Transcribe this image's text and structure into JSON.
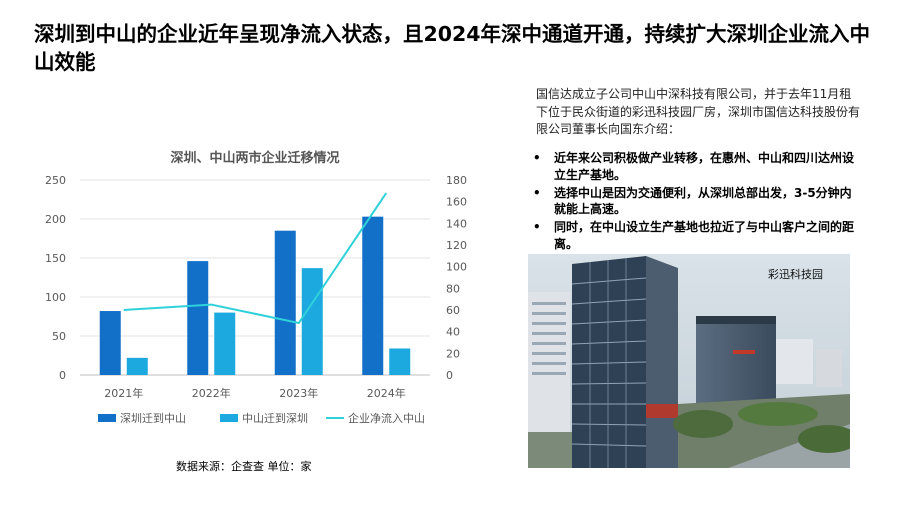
{
  "title": "深圳到中山的企业近年呈现净流入状态，且2024年深中通道开通，持续扩大深圳企业流入中山效能",
  "chart_data": {
    "type": "bar",
    "title": "深圳、中山两市企业迁移情况",
    "categories": [
      "2021年",
      "2022年",
      "2023年",
      "2024年"
    ],
    "series": [
      {
        "name": "深圳迁到中山",
        "type": "bar",
        "axis": "left",
        "color": "#1270C8",
        "values": [
          82,
          146,
          185,
          203
        ]
      },
      {
        "name": "中山迁到深圳",
        "type": "bar",
        "axis": "left",
        "color": "#1BA9DF",
        "values": [
          22,
          80,
          137,
          34
        ]
      },
      {
        "name": "企业净流入中山",
        "type": "line",
        "axis": "right",
        "color": "#2ED1DA",
        "values": [
          60,
          65,
          48,
          168
        ]
      }
    ],
    "y_left": {
      "min": 0,
      "max": 250,
      "ticks": [
        0,
        50,
        100,
        150,
        200,
        250
      ]
    },
    "y_right": {
      "min": 0,
      "max": 180,
      "ticks": [
        0,
        20,
        40,
        60,
        80,
        100,
        120,
        140,
        160,
        180
      ]
    },
    "grid": true,
    "legend_position": "bottom"
  },
  "source_note": "数据来源：企查查  单位：家",
  "intro_text": "国信达成立子公司中山中深科技有限公司，并于去年11月租下位于民众街道的彩迅科技园厂房，深圳市国信达科技股份有限公司董事长向国东介绍：",
  "bullet_glyph": "•",
  "bullets": [
    "近年来公司积极做产业转移，在惠州、中山和四川达州设立生产基地。",
    "选择中山是因为交通便利，从深圳总部出发，3-5分钟内就能上高速。",
    "同时，在中山设立生产基地也拉近了与中山客户之间的距离。"
  ],
  "photo_label": "彩迅科技园"
}
